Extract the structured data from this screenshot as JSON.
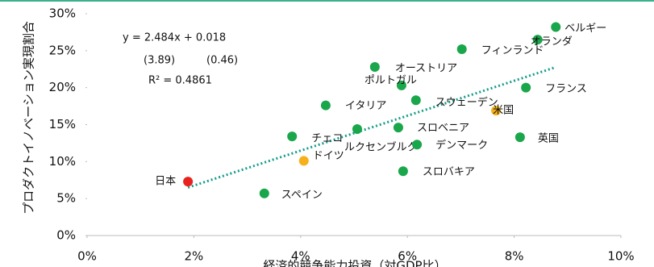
{
  "chart_data": {
    "type": "scatter",
    "xlabel": "経済的競争能力投資（対GDP比）",
    "ylabel": "プロダクトイノベーション実現割合",
    "annotations": [
      "y = 2.484x + 0.018",
      "(3.89)",
      "(0.46)",
      "R² = 0.4861"
    ],
    "xlim": [
      0,
      10
    ],
    "ylim": [
      0,
      30
    ],
    "xticks": [
      {
        "value": 0,
        "label": "0%"
      },
      {
        "value": 2,
        "label": "2%"
      },
      {
        "value": 4,
        "label": "4%"
      },
      {
        "value": 6,
        "label": "6%"
      },
      {
        "value": 8,
        "label": "8%"
      },
      {
        "value": 10,
        "label": "10%"
      }
    ],
    "yticks": [
      {
        "value": 0,
        "label": "0%"
      },
      {
        "value": 5,
        "label": "5%"
      },
      {
        "value": 10,
        "label": "10%"
      },
      {
        "value": 15,
        "label": "15%"
      },
      {
        "value": 20,
        "label": "20%"
      },
      {
        "value": 25,
        "label": "25%"
      },
      {
        "value": 30,
        "label": "30%"
      }
    ],
    "points": [
      {
        "label": "ベルギー",
        "x": 8.78,
        "y": 28.2,
        "color": "#1aa64a"
      },
      {
        "label": "オランダ",
        "x": 8.44,
        "y": 26.5,
        "color": "#1aa64a"
      },
      {
        "label": "フィンランド",
        "x": 7.02,
        "y": 25.2,
        "color": "#1aa64a"
      },
      {
        "label": "オーストリア",
        "x": 5.39,
        "y": 22.8,
        "color": "#1aa64a"
      },
      {
        "label": "ポルトガル",
        "x": 5.89,
        "y": 20.3,
        "color": "#1aa64a"
      },
      {
        "label": "フランス",
        "x": 8.22,
        "y": 20.0,
        "color": "#1aa64a"
      },
      {
        "label": "イタリア",
        "x": 4.47,
        "y": 17.6,
        "color": "#1aa64a"
      },
      {
        "label": "スウェーデン",
        "x": 6.16,
        "y": 18.3,
        "color": "#1aa64a"
      },
      {
        "label": "米国",
        "x": 7.66,
        "y": 16.9,
        "color": "#f5b01a"
      },
      {
        "label": "スロベニア",
        "x": 5.83,
        "y": 14.6,
        "color": "#1aa64a"
      },
      {
        "label": "チェコ",
        "x": 3.84,
        "y": 13.4,
        "color": "#1aa64a"
      },
      {
        "label": "ドイツ",
        "x": 4.06,
        "y": 10.1,
        "color": "#f5b01a"
      },
      {
        "label": "ルクセンブルク",
        "x": 5.06,
        "y": 14.4,
        "color": "#1aa64a"
      },
      {
        "label": "デンマーク",
        "x": 6.18,
        "y": 12.3,
        "color": "#1aa64a"
      },
      {
        "label": "英国",
        "x": 8.11,
        "y": 13.3,
        "color": "#1aa64a"
      },
      {
        "label": "スロバキア",
        "x": 5.92,
        "y": 8.7,
        "color": "#1aa64a"
      },
      {
        "label": "日本",
        "x": 1.89,
        "y": 7.3,
        "color": "#e8231f"
      },
      {
        "label": "スペイン",
        "x": 3.32,
        "y": 5.7,
        "color": "#1aa64a"
      }
    ],
    "trendline": {
      "color": "#159c8a",
      "x": [
        1.89,
        8.75
      ],
      "y": [
        6.5,
        22.7
      ]
    }
  }
}
